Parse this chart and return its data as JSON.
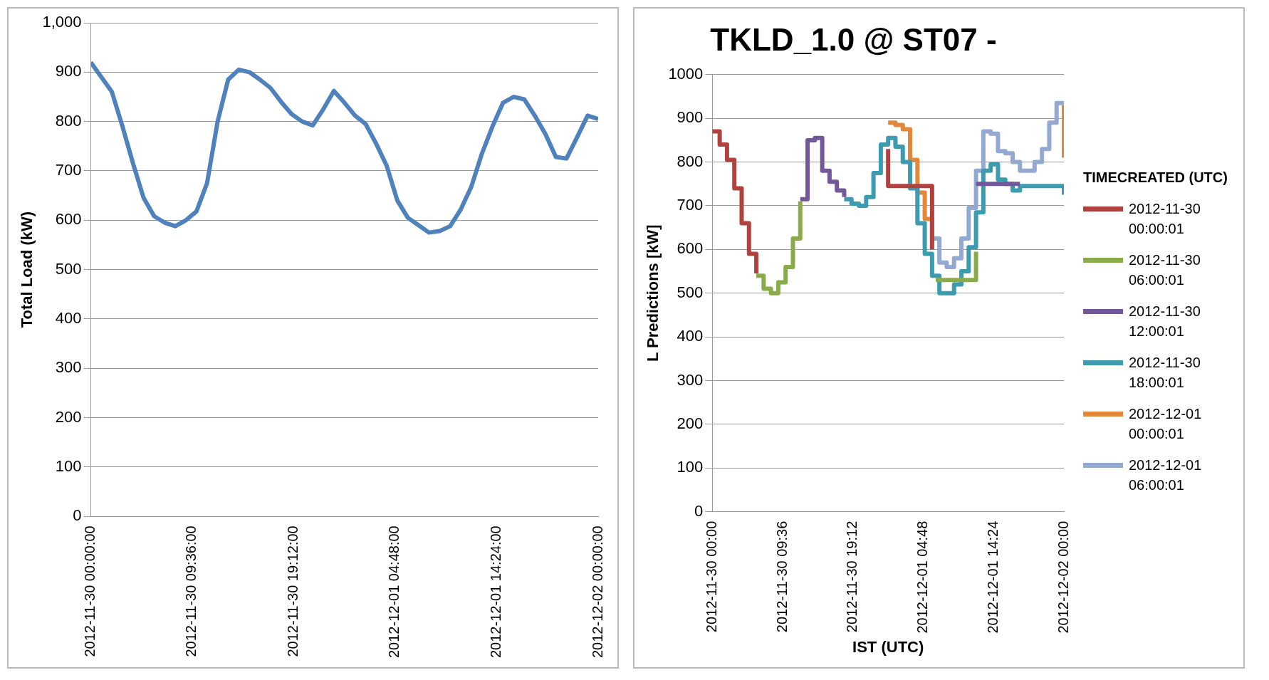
{
  "chart_data": [
    {
      "type": "line",
      "ylabel": "Total Load (kW)",
      "x": [
        "2012-11-30T00:00",
        "2012-11-30T01:00",
        "2012-11-30T02:00",
        "2012-11-30T03:00",
        "2012-11-30T04:00",
        "2012-11-30T05:00",
        "2012-11-30T06:00",
        "2012-11-30T07:00",
        "2012-11-30T08:00",
        "2012-11-30T09:00",
        "2012-11-30T10:00",
        "2012-11-30T11:00",
        "2012-11-30T12:00",
        "2012-11-30T13:00",
        "2012-11-30T14:00",
        "2012-11-30T15:00",
        "2012-11-30T16:00",
        "2012-11-30T17:00",
        "2012-11-30T18:00",
        "2012-11-30T19:00",
        "2012-11-30T20:00",
        "2012-11-30T21:00",
        "2012-11-30T22:00",
        "2012-11-30T23:00",
        "2012-12-01T00:00",
        "2012-12-01T01:00",
        "2012-12-01T02:00",
        "2012-12-01T03:00",
        "2012-12-01T04:00",
        "2012-12-01T05:00",
        "2012-12-01T06:00",
        "2012-12-01T07:00",
        "2012-12-01T08:00",
        "2012-12-01T09:00",
        "2012-12-01T10:00",
        "2012-12-01T11:00",
        "2012-12-01T12:00",
        "2012-12-01T13:00",
        "2012-12-01T14:00",
        "2012-12-01T15:00",
        "2012-12-01T16:00",
        "2012-12-01T17:00",
        "2012-12-01T18:00",
        "2012-12-01T19:00",
        "2012-12-01T20:00",
        "2012-12-01T21:00",
        "2012-12-01T22:00",
        "2012-12-01T23:00",
        "2012-12-02T00:00"
      ],
      "series": [
        {
          "color": "#4f81bd",
          "values": [
            920,
            890,
            860,
            790,
            715,
            645,
            608,
            595,
            588,
            600,
            618,
            675,
            800,
            885,
            905,
            900,
            885,
            868,
            840,
            815,
            800,
            792,
            825,
            862,
            838,
            812,
            795,
            755,
            710,
            640,
            605,
            590,
            575,
            578,
            588,
            622,
            668,
            735,
            790,
            838,
            850,
            845,
            812,
            775,
            728,
            725,
            768,
            812,
            805
          ]
        }
      ],
      "xlim": [
        "2012-11-30T00:00",
        "2012-12-02T00:00"
      ],
      "xticks": [
        {
          "value": "2012-11-30T00:00",
          "label": "2012-11-30 00:00:00"
        },
        {
          "value": "2012-11-30T09:36",
          "label": "2012-11-30 09:36:00"
        },
        {
          "value": "2012-11-30T19:12",
          "label": "2012-11-30 19:12:00"
        },
        {
          "value": "2012-12-01T04:48",
          "label": "2012-12-01 04:48:00"
        },
        {
          "value": "2012-12-01T14:24",
          "label": "2012-12-01 14:24:00"
        },
        {
          "value": "2012-12-02T00:00",
          "label": "2012-12-02 00:00:00"
        }
      ],
      "ylim": [
        0,
        1000
      ],
      "yticks": [
        0,
        100,
        200,
        300,
        400,
        500,
        600,
        700,
        800,
        900,
        {
          "value": 1000,
          "label": "1,000"
        }
      ],
      "grid": "y",
      "marker": "none"
    },
    {
      "type": "step",
      "title": "TKLD_1.0 @ ST07 -",
      "xlabel": "IST (UTC)",
      "ylabel": "L Predictions [kW]",
      "legend_title": "TIMECREATED (UTC)",
      "series": [
        {
          "name": "2012-11-30 00:00:01",
          "color": "#b0413e",
          "x": [
            "2012-11-30T00:00",
            "2012-11-30T01:00",
            "2012-11-30T02:00",
            "2012-11-30T03:00",
            "2012-11-30T04:00",
            "2012-11-30T05:00",
            "2012-11-30T06:00",
            "2012-11-30T12:00",
            "2012-12-01T00:00",
            "2012-12-01T00:00",
            "2012-12-01T06:00",
            "2012-12-01T06:00"
          ],
          "values": [
            870,
            840,
            805,
            740,
            660,
            590,
            545,
            null,
            830,
            745,
            745,
            600
          ]
        },
        {
          "name": "2012-11-30 06:00:01",
          "color": "#8aab4a",
          "x": [
            "2012-11-30T06:00",
            "2012-11-30T07:00",
            "2012-11-30T08:00",
            "2012-11-30T09:00",
            "2012-11-30T10:00",
            "2012-11-30T11:00",
            "2012-11-30T12:00",
            "2012-11-30T20:00",
            "2012-12-01T06:30",
            "2012-12-01T12:00",
            "2012-12-01T12:00"
          ],
          "values": [
            540,
            510,
            500,
            525,
            560,
            625,
            710,
            null,
            530,
            530,
            595
          ]
        },
        {
          "name": "2012-11-30 12:00:01",
          "color": "#72589a",
          "x": [
            "2012-11-30T12:00",
            "2012-11-30T13:00",
            "2012-11-30T14:00",
            "2012-11-30T15:00",
            "2012-11-30T16:00",
            "2012-11-30T17:00",
            "2012-11-30T18:00",
            "2012-12-01T00:00",
            "2012-12-01T12:00",
            "2012-12-01T18:00"
          ],
          "values": [
            715,
            850,
            855,
            780,
            755,
            735,
            720,
            null,
            750,
            750
          ]
        },
        {
          "name": "2012-11-30 18:00:01",
          "color": "#3d9bb0",
          "x": [
            "2012-11-30T18:00",
            "2012-11-30T19:00",
            "2012-11-30T20:00",
            "2012-11-30T21:00",
            "2012-11-30T22:00",
            "2012-11-30T23:00",
            "2012-12-01T00:00",
            "2012-12-01T01:00",
            "2012-12-01T02:00",
            "2012-12-01T03:00",
            "2012-12-01T04:00",
            "2012-12-01T05:00",
            "2012-12-01T06:00",
            "2012-12-01T07:00",
            "2012-12-01T08:00",
            "2012-12-01T09:00",
            "2012-12-01T10:00",
            "2012-12-01T11:00",
            "2012-12-01T12:00",
            "2012-12-01T13:00",
            "2012-12-01T14:00",
            "2012-12-01T15:00",
            "2012-12-01T16:00",
            "2012-12-01T17:00",
            "2012-12-01T18:00",
            "2012-12-02T00:00",
            "2012-12-02T00:00"
          ],
          "values": [
            715,
            705,
            700,
            720,
            775,
            840,
            855,
            835,
            800,
            740,
            660,
            590,
            540,
            500,
            500,
            520,
            550,
            605,
            685,
            780,
            795,
            760,
            750,
            735,
            745,
            745,
            725
          ]
        },
        {
          "name": "2012-12-01 00:00:01",
          "color": "#e3883a",
          "x": [
            "2012-12-01T00:00",
            "2012-12-01T01:00",
            "2012-12-01T02:00",
            "2012-12-01T03:00",
            "2012-12-01T04:00",
            "2012-12-01T05:00",
            "2012-12-01T06:00",
            "2012-12-01T16:00",
            "2012-12-02T00:00",
            "2012-12-02T00:00"
          ],
          "values": [
            890,
            885,
            875,
            805,
            730,
            670,
            615,
            null,
            930,
            810
          ]
        },
        {
          "name": "2012-12-01 06:00:01",
          "color": "#94a9d1",
          "x": [
            "2012-12-01T06:00",
            "2012-12-01T07:00",
            "2012-12-01T08:00",
            "2012-12-01T09:00",
            "2012-12-01T10:00",
            "2012-12-01T11:00",
            "2012-12-01T12:00",
            "2012-12-01T13:00",
            "2012-12-01T14:00",
            "2012-12-01T15:00",
            "2012-12-01T16:00",
            "2012-12-01T17:00",
            "2012-12-01T18:00",
            "2012-12-01T19:00",
            "2012-12-01T20:00",
            "2012-12-01T21:00",
            "2012-12-01T22:00",
            "2012-12-01T23:00",
            "2012-12-02T00:00"
          ],
          "values": [
            625,
            570,
            560,
            580,
            625,
            695,
            780,
            870,
            865,
            825,
            820,
            800,
            780,
            780,
            800,
            830,
            890,
            935,
            935
          ]
        }
      ],
      "xlim": [
        "2012-11-30T00:00",
        "2012-12-02T00:00"
      ],
      "xticks": [
        {
          "value": "2012-11-30T00:00",
          "label": "2012-11-30 00:00"
        },
        {
          "value": "2012-11-30T09:36",
          "label": "2012-11-30 09:36"
        },
        {
          "value": "2012-11-30T19:12",
          "label": "2012-11-30 19:12"
        },
        {
          "value": "2012-12-01T04:48",
          "label": "2012-12-01 04:48"
        },
        {
          "value": "2012-12-01T14:24",
          "label": "2012-12-01 14:24"
        },
        {
          "value": "2012-12-02T00:00",
          "label": "2012-12-02 00:00"
        }
      ],
      "ylim": [
        0,
        1000
      ],
      "yticks": [
        0,
        100,
        200,
        300,
        400,
        500,
        600,
        700,
        800,
        900,
        1000
      ],
      "grid": "y",
      "legend": "right",
      "marker": "none"
    }
  ]
}
